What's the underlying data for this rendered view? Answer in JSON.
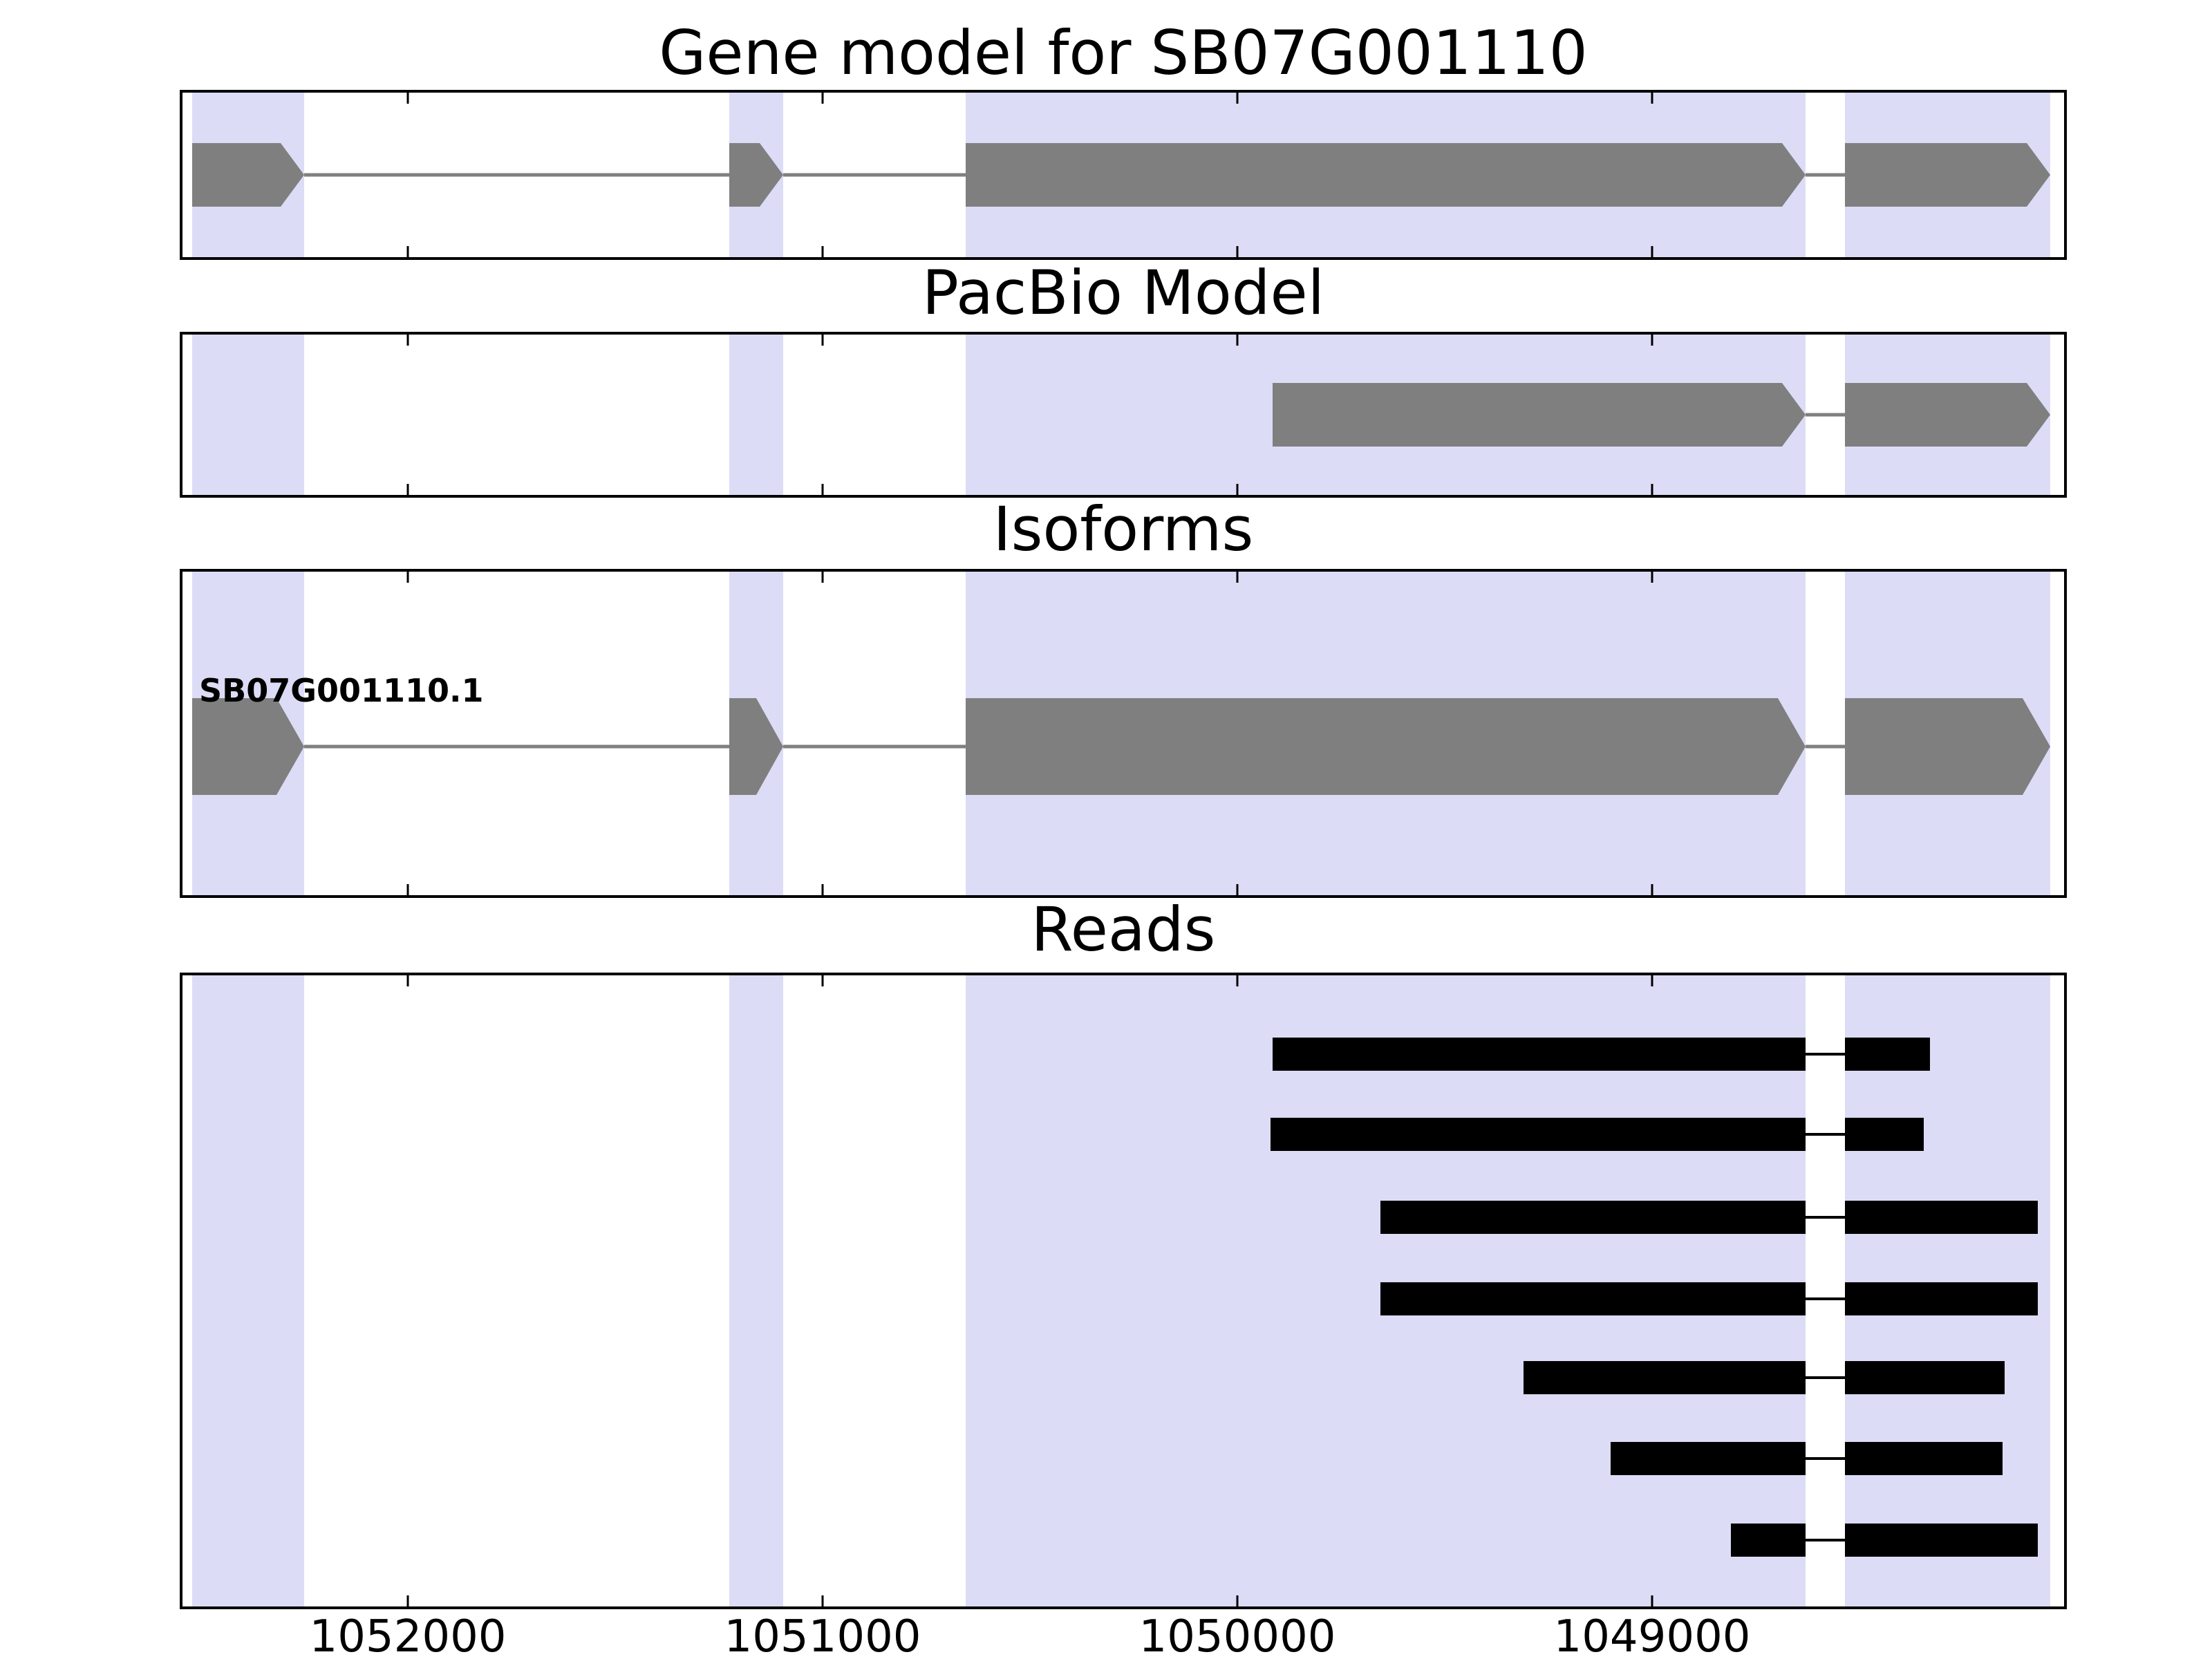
{
  "chart_data": {
    "type": "gene-model-browser",
    "panels": [
      {
        "id": "gene-model",
        "title": "Gene model for SB07G001110",
        "features": [
          {
            "kind": "transcript",
            "arrow": "right",
            "exons": [
              [
                1052520,
                1052250
              ],
              [
                1051225,
                1051095
              ],
              [
                1050655,
                1048630
              ],
              [
                1048535,
                1048040
              ]
            ]
          }
        ]
      },
      {
        "id": "pacbio-model",
        "title": "PacBio Model",
        "features": [
          {
            "kind": "transcript",
            "arrow": "right",
            "exons": [
              [
                1049915,
                1048630
              ],
              [
                1048535,
                1048040
              ]
            ]
          }
        ]
      },
      {
        "id": "isoforms",
        "title": "Isoforms",
        "features": [
          {
            "kind": "transcript",
            "label": "SB07G001110.1",
            "arrow": "right",
            "exons": [
              [
                1052520,
                1052250
              ],
              [
                1051225,
                1051095
              ],
              [
                1050655,
                1048630
              ],
              [
                1048535,
                1048040
              ]
            ]
          }
        ]
      },
      {
        "id": "reads",
        "title": "Reads",
        "features": [
          {
            "kind": "read",
            "exons": [
              [
                1049915,
                1048630
              ],
              [
                1048535,
                1048330
              ]
            ]
          },
          {
            "kind": "read",
            "exons": [
              [
                1049920,
                1048630
              ],
              [
                1048535,
                1048345
              ]
            ]
          },
          {
            "kind": "read",
            "exons": [
              [
                1049655,
                1048630
              ],
              [
                1048535,
                1048070
              ]
            ]
          },
          {
            "kind": "read",
            "exons": [
              [
                1049655,
                1048630
              ],
              [
                1048535,
                1048070
              ]
            ]
          },
          {
            "kind": "read",
            "exons": [
              [
                1049310,
                1048630
              ],
              [
                1048535,
                1048150
              ]
            ]
          },
          {
            "kind": "read",
            "exons": [
              [
                1049100,
                1048630
              ],
              [
                1048535,
                1048155
              ]
            ]
          },
          {
            "kind": "read",
            "exons": [
              [
                1048810,
                1048630
              ],
              [
                1048535,
                1048070
              ]
            ]
          }
        ]
      }
    ],
    "highlight_regions": [
      [
        1052520,
        1052250
      ],
      [
        1051225,
        1051095
      ],
      [
        1050655,
        1048630
      ],
      [
        1048535,
        1048040
      ]
    ],
    "x_axis": {
      "range_left": 1052550,
      "range_right": 1048000,
      "ticks": [
        1052000,
        1051000,
        1050000,
        1049000
      ],
      "tick_labels": [
        "1052000",
        "1051000",
        "1050000",
        "1049000"
      ]
    },
    "colors": {
      "exon": "#7f7f7f",
      "intron": "#7f7f7f",
      "read": "#000000",
      "highlight": "#dcdcf6",
      "border": "#000000",
      "background": "#ffffff"
    }
  }
}
